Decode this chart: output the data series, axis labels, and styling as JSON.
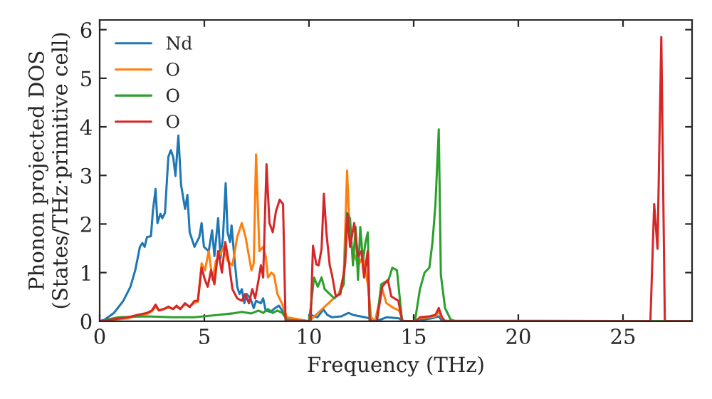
{
  "chart_data": {
    "type": "line",
    "xlabel": "Frequency (THz)",
    "ylabel": "Phonon projected DOS\n(States/THz·primitive cell)",
    "xlim": [
      0,
      28.3
    ],
    "ylim": [
      0,
      6.2
    ],
    "xticks": [
      0,
      5,
      10,
      15,
      20,
      25
    ],
    "yticks": [
      0,
      1,
      2,
      3,
      4,
      5,
      6
    ],
    "grid": false,
    "legend": "top left",
    "marker": "none",
    "line_style": "solid",
    "series": [
      {
        "name": "Nd",
        "color": "#1f77b4",
        "x": [
          0,
          0.23,
          0.68,
          1.13,
          1.47,
          1.7,
          1.92,
          2.04,
          2.15,
          2.26,
          2.45,
          2.54,
          2.67,
          2.76,
          2.9,
          2.99,
          3.12,
          3.28,
          3.4,
          3.51,
          3.62,
          3.76,
          3.89,
          4.08,
          4.19,
          4.3,
          4.53,
          4.64,
          4.76,
          4.87,
          4.98,
          5.21,
          5.37,
          5.48,
          5.66,
          5.77,
          5.89,
          6.02,
          6.11,
          6.23,
          6.3,
          6.45,
          6.57,
          6.68,
          6.79,
          6.91,
          7.02,
          7.2,
          7.36,
          7.47,
          7.7,
          7.81,
          7.93,
          8.15,
          8.38,
          8.56,
          8.72,
          8.94,
          10.0,
          10.08,
          10.4,
          10.69,
          10.87,
          11.1,
          11.55,
          11.89,
          12.1,
          12.45,
          12.9,
          13.0,
          13.4,
          13.7,
          14.3,
          14.5,
          15.1,
          15.3,
          15.86,
          16.2,
          16.35,
          28.3
        ],
        "values": [
          0,
          0.03,
          0.17,
          0.42,
          0.71,
          1.05,
          1.53,
          1.61,
          1.53,
          1.73,
          1.75,
          2.26,
          2.72,
          2.02,
          2.21,
          2.12,
          2.23,
          3.38,
          3.52,
          3.38,
          2.99,
          3.82,
          2.8,
          2.31,
          2.6,
          1.83,
          1.53,
          1.63,
          1.73,
          2.02,
          1.53,
          1.44,
          1.87,
          1.34,
          2.12,
          1.29,
          1.73,
          2.84,
          1.83,
          1.63,
          1.97,
          1.24,
          0.71,
          0.56,
          0.66,
          0.37,
          0.56,
          0.47,
          0.27,
          0.42,
          0.37,
          0.47,
          0.22,
          0.19,
          0.27,
          0.32,
          0.22,
          0.03,
          0,
          0.13,
          0.08,
          0.24,
          0.13,
          0.08,
          0.1,
          0.17,
          0.13,
          0.1,
          0.06,
          0,
          0.03,
          0.08,
          0.06,
          0,
          0,
          0.02,
          0.06,
          0.1,
          0.01,
          0
        ]
      },
      {
        "name": "O",
        "color": "#ff7f0e",
        "x": [
          0,
          1.36,
          1.81,
          2.26,
          2.49,
          2.67,
          2.83,
          3.06,
          3.28,
          3.51,
          3.67,
          3.85,
          4.08,
          4.3,
          4.53,
          4.69,
          4.87,
          5.03,
          5.21,
          5.39,
          5.55,
          5.77,
          5.93,
          6.11,
          6.34,
          6.57,
          6.79,
          6.97,
          7.13,
          7.25,
          7.36,
          7.47,
          7.63,
          7.81,
          7.93,
          8.04,
          8.2,
          8.33,
          8.49,
          8.72,
          8.94,
          10.0,
          10.08,
          11.0,
          11.43,
          11.66,
          11.82,
          11.96,
          12.1,
          12.36,
          12.58,
          12.81,
          12.97,
          13.15,
          13.5,
          13.7,
          14.05,
          14.3,
          14.5,
          15.1,
          15.3,
          15.75,
          16.04,
          16.2,
          16.35,
          16.5,
          28.3
        ],
        "values": [
          0,
          0.06,
          0.12,
          0.15,
          0.2,
          0.3,
          0.22,
          0.25,
          0.28,
          0.25,
          0.3,
          0.25,
          0.35,
          0.3,
          0.38,
          0.4,
          1.19,
          1.05,
          1.44,
          0.85,
          1.24,
          1.39,
          1.53,
          1.24,
          1.15,
          1.73,
          2.02,
          1.73,
          1.34,
          1.05,
          1.19,
          3.43,
          1.44,
          1.53,
          1.34,
          0.9,
          1.0,
          0.95,
          0.56,
          0.35,
          0.08,
          0,
          0.03,
          0.4,
          0.56,
          0.95,
          3.1,
          1.63,
          1.44,
          1.15,
          1.34,
          0.76,
          0.08,
          0,
          0.66,
          0.37,
          0.27,
          0.22,
          0,
          0,
          0.06,
          0.08,
          0.1,
          0.2,
          0.06,
          0,
          0
        ]
      },
      {
        "name": "O",
        "color": "#2ca02c",
        "x": [
          0,
          0.9,
          2.26,
          3.4,
          4.53,
          5.66,
          6.34,
          6.79,
          7.25,
          7.59,
          7.81,
          8.04,
          8.27,
          8.49,
          8.72,
          8.94,
          10.0,
          10.08,
          10.24,
          10.42,
          10.6,
          10.75,
          10.99,
          11.21,
          11.43,
          11.66,
          11.82,
          11.96,
          12.1,
          12.23,
          12.34,
          12.45,
          12.58,
          12.7,
          12.81,
          12.9,
          13.24,
          13.45,
          13.8,
          13.98,
          14.2,
          14.45,
          15.06,
          15.3,
          15.52,
          15.75,
          15.9,
          16.04,
          16.2,
          16.3,
          16.5,
          16.77,
          17.0,
          28.3
        ],
        "values": [
          0,
          0.08,
          0.1,
          0.08,
          0.08,
          0.13,
          0.16,
          0.19,
          0.16,
          0.22,
          0.17,
          0.25,
          0.17,
          0.22,
          0.17,
          0.03,
          0,
          0.27,
          0.9,
          0.71,
          0.9,
          0.66,
          0.56,
          0.47,
          0.56,
          0.76,
          2.23,
          2.12,
          1.15,
          1.94,
          0.85,
          1.94,
          1.24,
          1.63,
          1.83,
          0,
          0,
          0.76,
          0.85,
          1.1,
          1.05,
          0,
          0,
          0.66,
          1.0,
          1.1,
          1.63,
          2.4,
          3.95,
          0.95,
          0.27,
          0.03,
          0,
          0
        ]
      },
      {
        "name": "O",
        "color": "#d62728",
        "x": [
          0,
          1.36,
          1.81,
          2.26,
          2.49,
          2.67,
          2.83,
          3.06,
          3.28,
          3.51,
          3.67,
          3.85,
          4.08,
          4.3,
          4.53,
          4.69,
          4.87,
          5.03,
          5.16,
          5.32,
          5.48,
          5.66,
          5.84,
          6.0,
          6.16,
          6.34,
          6.57,
          6.79,
          6.95,
          7.13,
          7.29,
          7.43,
          7.59,
          7.7,
          7.81,
          7.97,
          8.11,
          8.27,
          8.42,
          8.6,
          8.76,
          8.88,
          10.0,
          10.08,
          10.19,
          10.35,
          10.46,
          10.6,
          10.71,
          10.83,
          10.99,
          11.1,
          11.28,
          11.5,
          11.73,
          11.84,
          11.96,
          12.16,
          12.34,
          12.5,
          12.63,
          12.8,
          12.9,
          13.24,
          13.5,
          13.77,
          13.93,
          14.27,
          14.45,
          15.1,
          15.3,
          15.75,
          16.04,
          16.2,
          16.35,
          16.5,
          26.31,
          26.49,
          26.65,
          26.83,
          27.0,
          28.3
        ],
        "values": [
          0,
          0.08,
          0.13,
          0.17,
          0.22,
          0.34,
          0.22,
          0.25,
          0.3,
          0.25,
          0.32,
          0.25,
          0.37,
          0.29,
          0.42,
          0.42,
          1.1,
          0.85,
          0.71,
          1.05,
          0.76,
          1.44,
          1.0,
          1.63,
          1.24,
          0.66,
          0.47,
          0.42,
          0.56,
          0.37,
          0.66,
          0.47,
          0.85,
          1.15,
          0.9,
          3.23,
          2.02,
          1.83,
          2.26,
          2.5,
          2.41,
          0,
          0,
          0.03,
          1.55,
          1.17,
          1.15,
          1.49,
          2.62,
          1.83,
          1.15,
          0.95,
          0.51,
          0.56,
          1.19,
          2.21,
          1.53,
          2.02,
          1.34,
          1.44,
          0.9,
          1.44,
          0,
          0,
          0.71,
          0.85,
          0.51,
          0.42,
          0,
          0,
          0.08,
          0.1,
          0.13,
          0.27,
          0.08,
          0,
          0,
          2.41,
          1.49,
          5.85,
          0,
          0
        ]
      }
    ]
  }
}
